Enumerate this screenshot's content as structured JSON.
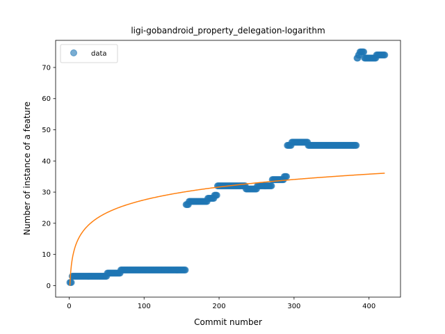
{
  "chart_data": {
    "type": "scatter",
    "title": "ligi-gobandroid_property_delegation-logarithm",
    "xlabel": "Commit number",
    "ylabel": "Number of instance of a feature",
    "xlim": [
      -18,
      442
    ],
    "ylim": [
      -3.7,
      78.7
    ],
    "xticks": [
      0,
      100,
      200,
      300,
      400
    ],
    "yticks": [
      0,
      10,
      20,
      30,
      40,
      50,
      60,
      70
    ],
    "legend": {
      "placement": "upper-left",
      "entries": [
        "data"
      ]
    },
    "colors": {
      "data": "#1f77b4",
      "fit": "#ff7f0e"
    },
    "series": [
      {
        "name": "data",
        "kind": "scatter",
        "segments": [
          {
            "x_start": 1,
            "x_end": 3,
            "y": 1
          },
          {
            "x_start": 4,
            "x_end": 50,
            "y": 3
          },
          {
            "x_start": 51,
            "x_end": 68,
            "y": 4
          },
          {
            "x_start": 69,
            "x_end": 155,
            "y": 5
          },
          {
            "x_start": 156,
            "x_end": 159,
            "y": 26
          },
          {
            "x_start": 160,
            "x_end": 184,
            "y": 27
          },
          {
            "x_start": 185,
            "x_end": 193,
            "y": 28
          },
          {
            "x_start": 194,
            "x_end": 197,
            "y": 29
          },
          {
            "x_start": 198,
            "x_end": 235,
            "y": 32
          },
          {
            "x_start": 236,
            "x_end": 250,
            "y": 31
          },
          {
            "x_start": 251,
            "x_end": 270,
            "y": 32
          },
          {
            "x_start": 271,
            "x_end": 286,
            "y": 34
          },
          {
            "x_start": 287,
            "x_end": 290,
            "y": 35
          },
          {
            "x_start": 291,
            "x_end": 296,
            "y": 45
          },
          {
            "x_start": 297,
            "x_end": 318,
            "y": 46
          },
          {
            "x_start": 319,
            "x_end": 383,
            "y": 45
          },
          {
            "x_start": 384,
            "x_end": 385,
            "y": 73
          },
          {
            "x_start": 386,
            "x_end": 387,
            "y": 74
          },
          {
            "x_start": 388,
            "x_end": 393,
            "y": 75
          },
          {
            "x_start": 394,
            "x_end": 409,
            "y": 73
          },
          {
            "x_start": 410,
            "x_end": 421,
            "y": 74
          }
        ]
      },
      {
        "name": "",
        "kind": "line",
        "model": "logarithm",
        "a": 5.97,
        "b": 0.0,
        "x_range": [
          1,
          421
        ]
      }
    ]
  }
}
